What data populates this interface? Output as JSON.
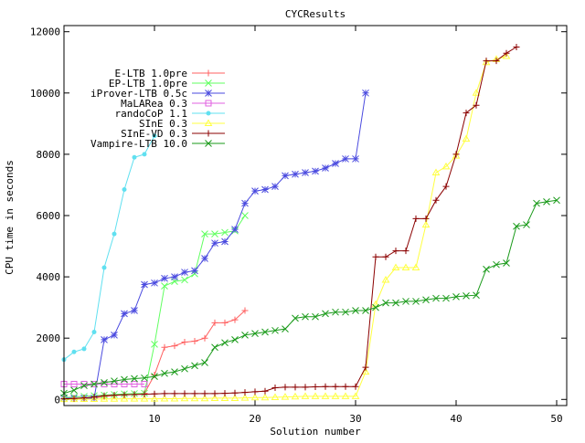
{
  "chart_data": {
    "type": "line",
    "title": "CYCResults",
    "xlabel": "Solution number",
    "ylabel": "CPU time in seconds",
    "xlim": [
      1,
      51
    ],
    "ylim": [
      -200,
      12200
    ],
    "x_ticks": [
      10,
      20,
      30,
      40,
      50
    ],
    "y_ticks": [
      0,
      2000,
      4000,
      6000,
      8000,
      10000,
      12000
    ],
    "legend_position": "top-left",
    "grid": false,
    "series": [
      {
        "name": "E-LTB 1.0pre",
        "color": "#ff6060",
        "marker": "plus",
        "x": [
          1,
          2,
          3,
          4,
          5,
          6,
          7,
          8,
          9,
          10,
          11,
          12,
          13,
          14,
          15,
          16,
          17,
          18,
          19
        ],
        "y": [
          15,
          20,
          30,
          50,
          90,
          130,
          150,
          170,
          200,
          800,
          1700,
          1750,
          1870,
          1900,
          2000,
          2500,
          2500,
          2600,
          2900
        ]
      },
      {
        "name": "EP-LTB 1.0pre",
        "color": "#60ff60",
        "marker": "cross",
        "x": [
          1,
          2,
          3,
          4,
          5,
          6,
          7,
          8,
          9,
          10,
          11,
          12,
          13,
          14,
          15,
          16,
          17,
          18,
          19
        ],
        "y": [
          60,
          80,
          100,
          120,
          140,
          160,
          180,
          190,
          200,
          1800,
          3700,
          3850,
          3900,
          4100,
          5400,
          5400,
          5450,
          5500,
          6000
        ]
      },
      {
        "name": "iProver-LTB 0.5c",
        "color": "#4a4adf",
        "marker": "star",
        "x": [
          1,
          2,
          3,
          4,
          5,
          6,
          7,
          8,
          9,
          10,
          11,
          12,
          13,
          14,
          15,
          16,
          17,
          18,
          19,
          20,
          21,
          22,
          23,
          24,
          25,
          26,
          27,
          28,
          29,
          30,
          31
        ],
        "y": [
          40,
          40,
          40,
          40,
          1950,
          2100,
          2800,
          2900,
          3750,
          3800,
          3950,
          4000,
          4150,
          4200,
          4600,
          5100,
          5150,
          5550,
          6400,
          6800,
          6850,
          6950,
          7300,
          7350,
          7400,
          7450,
          7550,
          7700,
          7850,
          7850,
          10000
        ]
      },
      {
        "name": "MaLARea 0.3",
        "color": "#e060e0",
        "marker": "square",
        "x": [
          1,
          2,
          3,
          4,
          5,
          6,
          7,
          8,
          9
        ],
        "y": [
          500,
          500,
          500,
          500,
          500,
          500,
          500,
          500,
          500
        ]
      },
      {
        "name": "randoCoP 1.1",
        "color": "#60e0f0",
        "marker": "circle",
        "x": [
          1,
          2,
          3,
          4,
          5,
          6,
          7,
          8,
          9,
          10
        ],
        "y": [
          1300,
          1550,
          1650,
          2200,
          4300,
          5400,
          6850,
          7900,
          8000,
          8600
        ]
      },
      {
        "name": "SInE 0.3",
        "color": "#ffff40",
        "marker": "triangle",
        "x": [
          1,
          2,
          3,
          4,
          5,
          6,
          7,
          8,
          9,
          10,
          11,
          12,
          13,
          14,
          15,
          16,
          17,
          18,
          19,
          20,
          21,
          22,
          23,
          24,
          25,
          26,
          27,
          28,
          29,
          30,
          31,
          32,
          33,
          34,
          35,
          36,
          37,
          38,
          39,
          40,
          41,
          42,
          43,
          44,
          45
        ],
        "y": [
          5,
          5,
          10,
          10,
          15,
          15,
          20,
          20,
          20,
          20,
          25,
          25,
          30,
          30,
          30,
          40,
          40,
          40,
          50,
          60,
          60,
          70,
          80,
          90,
          100,
          100,
          100,
          100,
          100,
          100,
          900,
          3100,
          3900,
          4300,
          4300,
          4300,
          5700,
          7400,
          7600,
          7950,
          8500,
          10000,
          11000,
          11100,
          11200
        ]
      },
      {
        "name": "SInE-VD 0.3",
        "color": "#8b0000",
        "marker": "plus",
        "x": [
          1,
          2,
          3,
          4,
          5,
          6,
          7,
          8,
          9,
          10,
          11,
          12,
          13,
          14,
          15,
          16,
          17,
          18,
          19,
          20,
          21,
          22,
          23,
          24,
          25,
          26,
          27,
          28,
          29,
          30,
          31,
          32,
          33,
          34,
          35,
          36,
          37,
          38,
          39,
          40,
          41,
          42,
          43,
          44,
          45,
          46
        ],
        "y": [
          20,
          30,
          50,
          80,
          120,
          140,
          150,
          160,
          170,
          180,
          190,
          190,
          190,
          190,
          190,
          190,
          200,
          210,
          230,
          250,
          270,
          380,
          400,
          400,
          400,
          410,
          420,
          420,
          420,
          420,
          1050,
          4650,
          4650,
          4850,
          4850,
          5900,
          5900,
          6500,
          6950,
          8000,
          9350,
          9600,
          11050,
          11050,
          11300,
          11500
        ]
      },
      {
        "name": "Vampire-LTB 10.0",
        "color": "#1a9a1a",
        "marker": "cross",
        "x": [
          1,
          2,
          3,
          4,
          5,
          6,
          7,
          8,
          9,
          10,
          11,
          12,
          13,
          14,
          15,
          16,
          17,
          18,
          19,
          20,
          21,
          22,
          23,
          24,
          25,
          26,
          27,
          28,
          29,
          30,
          31,
          32,
          33,
          34,
          35,
          36,
          37,
          38,
          39,
          40,
          41,
          42,
          43,
          44,
          45,
          46,
          47,
          48,
          49,
          50
        ],
        "y": [
          200,
          300,
          450,
          500,
          550,
          600,
          650,
          680,
          700,
          750,
          850,
          900,
          1000,
          1100,
          1200,
          1700,
          1850,
          1950,
          2100,
          2150,
          2200,
          2250,
          2300,
          2650,
          2700,
          2700,
          2800,
          2850,
          2850,
          2900,
          2900,
          3000,
          3150,
          3150,
          3200,
          3200,
          3250,
          3300,
          3300,
          3350,
          3380,
          3400,
          4250,
          4400,
          4450,
          5650,
          5700,
          6400,
          6450,
          6500
        ]
      }
    ]
  }
}
